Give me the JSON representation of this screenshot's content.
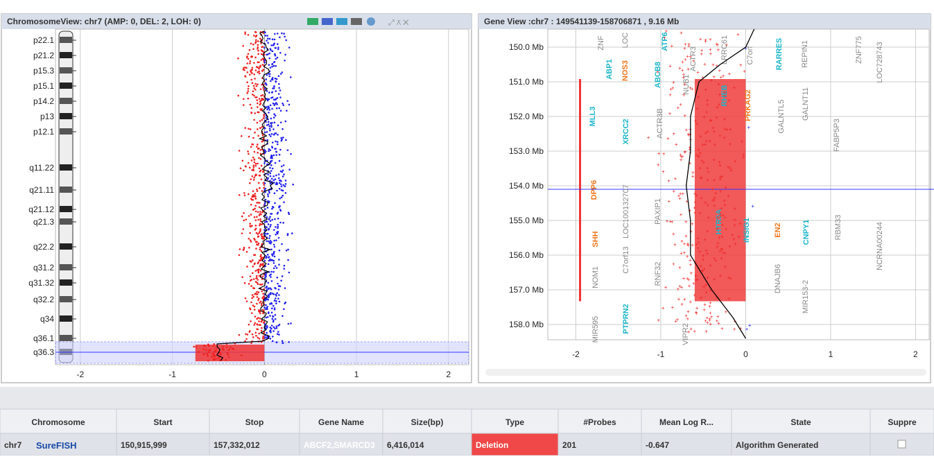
{
  "chromosome_view": {
    "title": "ChromosomeView: chr7 (AMP: 0, DEL: 2, LOH: 0)",
    "bands": [
      "p22.1",
      "p21.2",
      "p15.3",
      "p15.1",
      "p14.2",
      "p13",
      "p12.1",
      "q11.22",
      "q21.11",
      "q21.12",
      "q21.3",
      "q22.2",
      "q31.2",
      "q31.32",
      "q32.2",
      "q34",
      "q36.1",
      "q36.3"
    ],
    "xlim": [
      -2.27,
      2.22
    ],
    "xticks": [
      -2,
      -1,
      0,
      1,
      2
    ]
  },
  "gene_view": {
    "title": "Gene View :chr7 : 149541139-158706871 , 9.16 Mb",
    "xlim": [
      -2.33,
      2.16
    ],
    "xticks": [
      -2,
      -1,
      0,
      1,
      2
    ],
    "ylim": [
      149.48,
      158.44
    ],
    "yticks": [
      {
        "value": 150,
        "label": "150.0 Mb"
      },
      {
        "value": 151,
        "label": "151.0 Mb"
      },
      {
        "value": 152,
        "label": "152.0 Mb"
      },
      {
        "value": 153,
        "label": "153.0 Mb"
      },
      {
        "value": 154,
        "label": "154.0 Mb"
      },
      {
        "value": 155,
        "label": "155.0 Mb"
      },
      {
        "value": 156,
        "label": "156.0 Mb"
      },
      {
        "value": 157,
        "label": "157.0 Mb"
      },
      {
        "value": 158,
        "label": "158.0 Mb"
      }
    ],
    "genes": [
      {
        "label": "ZNF",
        "color": "#888"
      },
      {
        "label": "ABP1",
        "color": "#1cb5c9"
      },
      {
        "label": "NOS3",
        "color": "#f07820"
      },
      {
        "label": "LOC",
        "color": "#888"
      },
      {
        "label": "ABCB8",
        "color": "#1cb5c9"
      },
      {
        "label": "ATP6",
        "color": "#1cb5c9"
      },
      {
        "label": "NUB1",
        "color": "#888"
      },
      {
        "label": "ACTR3",
        "color": "#888"
      },
      {
        "label": "LRRC61",
        "color": "#888"
      },
      {
        "label": "RHEB",
        "color": "#1cb5c9"
      },
      {
        "label": "PRKAG2",
        "color": "#f07820"
      },
      {
        "label": "C7orf",
        "color": "#888"
      },
      {
        "label": "RARRES",
        "color": "#1cb5c9"
      },
      {
        "label": "GALNTL5",
        "color": "#888"
      },
      {
        "label": "GALNT11",
        "color": "#888"
      },
      {
        "label": "REPIN1",
        "color": "#888"
      },
      {
        "label": "FABP5P3",
        "color": "#888"
      },
      {
        "label": "ZNF775",
        "color": "#888"
      },
      {
        "label": "LOC728743",
        "color": "#888"
      },
      {
        "label": "MLL3",
        "color": "#1cb5c9"
      },
      {
        "label": "XRCC2",
        "color": "#1cb5c9"
      },
      {
        "label": "ACTR3B",
        "color": "#888"
      },
      {
        "label": "DPP6",
        "color": "#f07820"
      },
      {
        "label": "PAXIP1",
        "color": "#888"
      },
      {
        "label": "LOC100132707",
        "color": "#888"
      },
      {
        "label": "HTR5A",
        "color": "#1cb5c9"
      },
      {
        "label": "INSIG1",
        "color": "#1cb5c9"
      },
      {
        "label": "EN2",
        "color": "#f07820"
      },
      {
        "label": "CNPY1",
        "color": "#1cb5c9"
      },
      {
        "label": "RBM33",
        "color": "#888"
      },
      {
        "label": "NCRNA00244",
        "color": "#888"
      },
      {
        "label": "SHH",
        "color": "#f07820"
      },
      {
        "label": "C7orf13",
        "color": "#888"
      },
      {
        "label": "RNF32",
        "color": "#888"
      },
      {
        "label": "NOM1",
        "color": "#888"
      },
      {
        "label": "DNAJB6",
        "color": "#888"
      },
      {
        "label": "MIR153-2",
        "color": "#888"
      },
      {
        "label": "PTPRN2",
        "color": "#1cb5c9"
      },
      {
        "label": "MIR595",
        "color": "#888"
      },
      {
        "label": "VIPR2",
        "color": "#888"
      }
    ]
  },
  "table": {
    "headers": [
      "Chromosome",
      "Start",
      "Stop",
      "Gene Name",
      "Size(bp)",
      "Type",
      "#Probes",
      "Mean Log R...",
      "State",
      "Suppre"
    ],
    "rows": [
      {
        "chromosome": "chr7",
        "logo": "SureFISH",
        "start": "150,915,999",
        "stop": "157,332,012",
        "gene_name": "ABCF2,SMARCD3",
        "size": "6,416,014",
        "type": "Deletion",
        "probes": "201",
        "mean_log_ratio": "-0.647",
        "state": "Algorithm Generated"
      }
    ]
  }
}
